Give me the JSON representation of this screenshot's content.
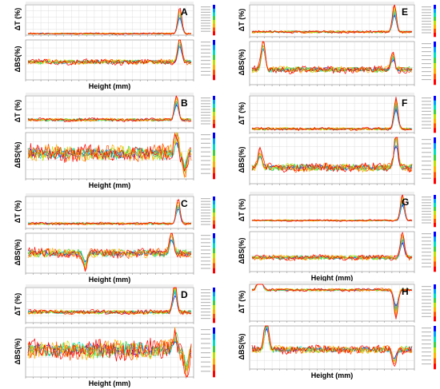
{
  "figure": {
    "xlabel": "Height (mm)",
    "ylabel_top": "ΔT (%)",
    "ylabel_bottom": "ΔBS(%)"
  },
  "chart_data": [
    {
      "type": "line",
      "panel": "A",
      "xlabel": "Height (mm)",
      "ylabels": [
        "ΔT (%)",
        "ΔBS(%)"
      ],
      "grid": true,
      "legend": "right colour scale (blue → green → red)",
      "transmission": {
        "baseline": 0.05,
        "peaks": [
          {
            "x": 0.93,
            "value": 0.95,
            "sign": 1
          }
        ],
        "noise": 0.02
      },
      "backscattering": {
        "baseline": 0.45,
        "peaks": [
          {
            "x": 0.93,
            "value": 0.7,
            "sign": 1
          }
        ],
        "noise": 0.05
      }
    },
    {
      "type": "line",
      "panel": "B",
      "xlabel": "Height (mm)",
      "ylabels": [
        "ΔT (%)",
        "ΔBS(%)"
      ],
      "grid": true,
      "legend": "right colour scale (blue → green → red)",
      "transmission": {
        "baseline": 0.25,
        "peaks": [
          {
            "x": 0.91,
            "value": 0.85,
            "sign": 1
          }
        ],
        "noise": 0.04
      },
      "backscattering": {
        "baseline": 0.55,
        "peaks": [
          {
            "x": 0.91,
            "value": 0.5,
            "sign": 1
          },
          {
            "x": 0.96,
            "value": 0.5,
            "sign": -1
          }
        ],
        "noise": 0.14
      }
    },
    {
      "type": "line",
      "panel": "C",
      "xlabel": "Height (mm)",
      "ylabels": [
        "ΔT (%)",
        "ΔBS(%)"
      ],
      "grid": true,
      "legend": "right colour scale (blue → green → red)",
      "transmission": {
        "baseline": 0.15,
        "peaks": [
          {
            "x": 0.92,
            "value": 0.85,
            "sign": 1
          }
        ],
        "noise": 0.03
      },
      "backscattering": {
        "baseline": 0.5,
        "peaks": [
          {
            "x": 0.35,
            "value": 0.4,
            "sign": -1
          },
          {
            "x": 0.88,
            "value": 0.6,
            "sign": 1
          }
        ],
        "noise": 0.09
      }
    },
    {
      "type": "line",
      "panel": "D",
      "xlabel": "Height (mm)",
      "ylabels": [
        "ΔT (%)",
        "ΔBS(%)"
      ],
      "grid": true,
      "legend": "right colour scale (blue → green → red)",
      "transmission": {
        "baseline": 0.3,
        "peaks": [
          {
            "x": 0.9,
            "value": 0.9,
            "sign": 1
          }
        ],
        "noise": 0.05
      },
      "backscattering": {
        "baseline": 0.55,
        "peaks": [
          {
            "x": 0.9,
            "value": 0.4,
            "sign": 1
          },
          {
            "x": 0.97,
            "value": 0.6,
            "sign": -1
          }
        ],
        "noise": 0.15
      }
    },
    {
      "type": "line",
      "panel": "E",
      "xlabel": "",
      "ylabels": [
        "ΔT (%)",
        "ΔBS(%)"
      ],
      "grid": true,
      "legend": "right colour scale (blue → green → red)",
      "transmission": {
        "baseline": 0.15,
        "peaks": [
          {
            "x": 0.89,
            "value": 0.95,
            "sign": 1
          }
        ],
        "noise": 0.03
      },
      "backscattering": {
        "baseline": 0.35,
        "peaks": [
          {
            "x": 0.07,
            "value": 0.8,
            "sign": 1
          },
          {
            "x": 0.88,
            "value": 0.4,
            "sign": 1
          }
        ],
        "noise": 0.06
      }
    },
    {
      "type": "line",
      "panel": "F",
      "xlabel": "",
      "ylabels": [
        "ΔT (%)",
        "ΔBS(%)"
      ],
      "grid": true,
      "legend": "right colour scale (blue → green → red)",
      "transmission": {
        "baseline": 0.1,
        "peaks": [
          {
            "x": 0.9,
            "value": 0.95,
            "sign": 1
          }
        ],
        "noise": 0.03
      },
      "backscattering": {
        "baseline": 0.35,
        "peaks": [
          {
            "x": 0.05,
            "value": 0.4,
            "sign": 1
          },
          {
            "x": 0.9,
            "value": 0.9,
            "sign": 1
          }
        ],
        "noise": 0.07
      }
    },
    {
      "type": "line",
      "panel": "G",
      "xlabel": "Height (mm)",
      "ylabels": [
        "ΔT (%)",
        "ΔBS(%)"
      ],
      "grid": true,
      "legend": "right colour scale (blue → green → red)",
      "transmission": {
        "baseline": 0.2,
        "peaks": [
          {
            "x": 0.94,
            "value": 0.9,
            "sign": 1
          }
        ],
        "noise": 0.02
      },
      "backscattering": {
        "baseline": 0.35,
        "peaks": [
          {
            "x": 0.94,
            "value": 0.7,
            "sign": 1
          }
        ],
        "noise": 0.05
      }
    },
    {
      "type": "line",
      "panel": "H",
      "xlabel": "Height (mm)",
      "ylabels": [
        "ΔT (%)",
        "ΔBS(%)"
      ],
      "grid": true,
      "legend": "right colour scale (blue → green → red)",
      "transmission": {
        "baseline": 0.85,
        "peaks": [
          {
            "x": 0.05,
            "value": 0.9,
            "sign": 1
          },
          {
            "x": 0.9,
            "value": 0.8,
            "sign": -1
          }
        ],
        "noise": 0.03
      },
      "backscattering": {
        "baseline": 0.45,
        "peaks": [
          {
            "x": 0.09,
            "value": 0.9,
            "sign": 1
          },
          {
            "x": 0.89,
            "value": 0.4,
            "sign": -1
          }
        ],
        "noise": 0.07
      }
    }
  ],
  "colors": {
    "scale": [
      "#0000ff",
      "#00a0ff",
      "#00e0c0",
      "#40d040",
      "#c0e000",
      "#ffb000",
      "#ff5000",
      "#ff0000"
    ],
    "grid": "#d8d8d8",
    "frame": "#888888",
    "band": "#f0f0f0"
  }
}
